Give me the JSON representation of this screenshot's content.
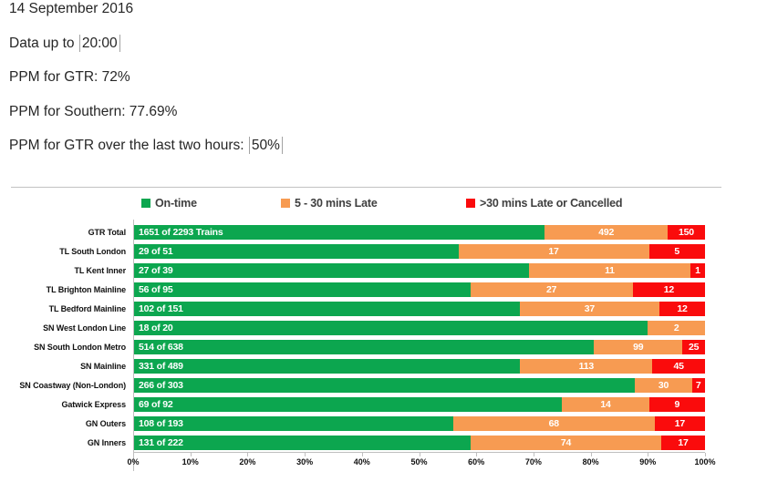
{
  "header": {
    "date": "14 September 2016",
    "data_up_to": {
      "label": "Data up to",
      "value": "20:00"
    },
    "ppm_gtr": "PPM for GTR: 72%",
    "ppm_southern": "PPM for Southern: 77.69%",
    "ppm_last_two_hours": {
      "label": "PPM for GTR over the last two hours:",
      "value": "50%"
    }
  },
  "chart_data": {
    "type": "bar",
    "orientation": "horizontal",
    "stacked": true,
    "unit": "trains",
    "legend": [
      {
        "key": "on_time",
        "label": "On-time",
        "color": "#0ca64f"
      },
      {
        "key": "late",
        "label": "5 - 30 mins Late",
        "color": "#f79b52"
      },
      {
        "key": "cancelled",
        "label": ">30 mins Late or Cancelled",
        "color": "#fa0b0c"
      }
    ],
    "x_axis": {
      "min": 0,
      "max": 100,
      "tick_labels": [
        "0%",
        "10%",
        "20%",
        "30%",
        "40%",
        "50%",
        "60%",
        "70%",
        "80%",
        "90%",
        "100%"
      ]
    },
    "rows": [
      {
        "category": "GTR Total",
        "on_time": 1651,
        "late": 492,
        "cancelled": 150,
        "total": 2293,
        "on_time_label": "1651 of 2293 Trains",
        "late_label": "492",
        "cancelled_label": "150"
      },
      {
        "category": "TL South London",
        "on_time": 29,
        "late": 17,
        "cancelled": 5,
        "total": 51,
        "on_time_label": "29 of 51",
        "late_label": "17",
        "cancelled_label": "5"
      },
      {
        "category": "TL Kent Inner",
        "on_time": 27,
        "late": 11,
        "cancelled": 1,
        "total": 39,
        "on_time_label": "27 of 39",
        "late_label": "11",
        "cancelled_label": "1"
      },
      {
        "category": "TL Brighton Mainline",
        "on_time": 56,
        "late": 27,
        "cancelled": 12,
        "total": 95,
        "on_time_label": "56 of 95",
        "late_label": "27",
        "cancelled_label": "12"
      },
      {
        "category": "TL Bedford Mainline",
        "on_time": 102,
        "late": 37,
        "cancelled": 12,
        "total": 151,
        "on_time_label": "102 of 151",
        "late_label": "37",
        "cancelled_label": "12"
      },
      {
        "category": "SN West London Line",
        "on_time": 18,
        "late": 2,
        "cancelled": 0,
        "total": 20,
        "on_time_label": "18 of 20",
        "late_label": "2",
        "cancelled_label": ""
      },
      {
        "category": "SN South London Metro",
        "on_time": 514,
        "late": 99,
        "cancelled": 25,
        "total": 638,
        "on_time_label": "514 of 638",
        "late_label": "99",
        "cancelled_label": "25"
      },
      {
        "category": "SN Mainline",
        "on_time": 331,
        "late": 113,
        "cancelled": 45,
        "total": 489,
        "on_time_label": "331 of 489",
        "late_label": "113",
        "cancelled_label": "45"
      },
      {
        "category": "SN Coastway (Non-London)",
        "on_time": 266,
        "late": 30,
        "cancelled": 7,
        "total": 303,
        "on_time_label": "266 of 303",
        "late_label": "30",
        "cancelled_label": "7"
      },
      {
        "category": "Gatwick Express",
        "on_time": 69,
        "late": 14,
        "cancelled": 9,
        "total": 92,
        "on_time_label": "69 of 92",
        "late_label": "14",
        "cancelled_label": "9"
      },
      {
        "category": "GN Outers",
        "on_time": 108,
        "late": 68,
        "cancelled": 17,
        "total": 193,
        "on_time_label": "108 of 193",
        "late_label": "68",
        "cancelled_label": "17"
      },
      {
        "category": "GN Inners",
        "on_time": 131,
        "late": 74,
        "cancelled": 17,
        "total": 222,
        "on_time_label": "131 of 222",
        "late_label": "74",
        "cancelled_label": "17"
      }
    ]
  }
}
